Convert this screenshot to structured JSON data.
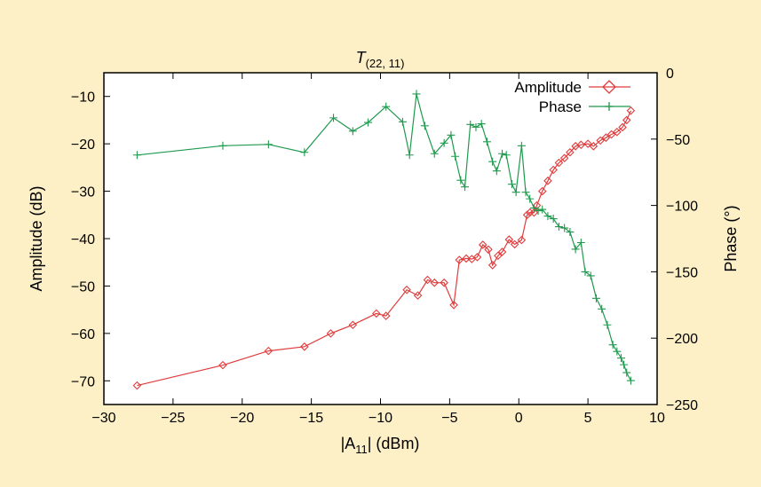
{
  "chart_data": {
    "type": "line",
    "title": "T",
    "title_subscript": "(22, 11)",
    "xlabel": "|A",
    "xlabel_subscript": "11",
    "xlabel_suffix": "| (dBm)",
    "ylabel": "Amplitude (dB)",
    "y2label": "Phase (°)",
    "xlim": [
      -30,
      10
    ],
    "ylim": [
      -75,
      -5
    ],
    "y2lim": [
      -250,
      0
    ],
    "xticks": [
      -30,
      -25,
      -20,
      -15,
      -10,
      -5,
      0,
      5,
      10
    ],
    "yticks": [
      -70,
      -60,
      -50,
      -40,
      -30,
      -20,
      -10
    ],
    "y2ticks": [
      -250,
      -200,
      -150,
      -100,
      -50,
      0
    ],
    "xtick_labels": [
      "−30",
      "−25",
      "−20",
      "−15",
      "−10",
      "−5",
      "0",
      "5",
      "10"
    ],
    "ytick_labels": [
      "−70",
      "−60",
      "−50",
      "−40",
      "−30",
      "−20",
      "−10"
    ],
    "y2tick_labels": [
      "−250",
      "−200",
      "−150",
      "−100",
      "−50",
      "0"
    ],
    "grid": false,
    "legend_position": "top-right",
    "series": [
      {
        "name": "Amplitude",
        "axis": "left",
        "color": "#e03c3c",
        "marker": "diamond",
        "points": [
          [
            -27.6,
            -71
          ],
          [
            -21.4,
            -66.7
          ],
          [
            -18.1,
            -63.7
          ],
          [
            -15.5,
            -62.8
          ],
          [
            -13.6,
            -60
          ],
          [
            -12,
            -58.2
          ],
          [
            -10.3,
            -55.8
          ],
          [
            -9.6,
            -56.3
          ],
          [
            -8.1,
            -50.8
          ],
          [
            -7.3,
            -52
          ],
          [
            -6.6,
            -48.7
          ],
          [
            -6.1,
            -49.3
          ],
          [
            -5.4,
            -49.3
          ],
          [
            -4.7,
            -54
          ],
          [
            -4.3,
            -44.5
          ],
          [
            -3.8,
            -44.2
          ],
          [
            -3.4,
            -44.3
          ],
          [
            -3.0,
            -43.9
          ],
          [
            -2.6,
            -41.3
          ],
          [
            -2.2,
            -42.3
          ],
          [
            -1.9,
            -45.6
          ],
          [
            -1.5,
            -43.6
          ],
          [
            -1.2,
            -42.8
          ],
          [
            -0.7,
            -40.2
          ],
          [
            -0.3,
            -41.2
          ],
          [
            0.2,
            -40.3
          ],
          [
            0.6,
            -35
          ],
          [
            0.8,
            -34.5
          ],
          [
            1.1,
            -34.5
          ],
          [
            1.3,
            -33
          ],
          [
            1.7,
            -30
          ],
          [
            2.1,
            -27.8
          ],
          [
            2.5,
            -25.5
          ],
          [
            2.9,
            -24
          ],
          [
            3.3,
            -23
          ],
          [
            3.7,
            -21.8
          ],
          [
            4.1,
            -20.5
          ],
          [
            4.5,
            -20.2
          ],
          [
            5.0,
            -20
          ],
          [
            5.4,
            -20.5
          ],
          [
            5.9,
            -19.3
          ],
          [
            6.3,
            -18.7
          ],
          [
            6.7,
            -18
          ],
          [
            7.1,
            -17.5
          ],
          [
            7.5,
            -16.5
          ],
          [
            7.8,
            -15
          ],
          [
            8.1,
            -13
          ]
        ]
      },
      {
        "name": "Phase",
        "axis": "right",
        "color": "#1f9a4e",
        "marker": "plus",
        "points": [
          [
            -27.6,
            -62
          ],
          [
            -21.4,
            -55
          ],
          [
            -18.1,
            -54
          ],
          [
            -15.5,
            -60
          ],
          [
            -13.4,
            -34
          ],
          [
            -12,
            -44
          ],
          [
            -10.9,
            -37.5
          ],
          [
            -9.6,
            -25.5
          ],
          [
            -8.4,
            -37
          ],
          [
            -7.9,
            -62
          ],
          [
            -7.4,
            -16
          ],
          [
            -6.8,
            -40
          ],
          [
            -6.1,
            -61
          ],
          [
            -5.4,
            -53
          ],
          [
            -4.9,
            -47
          ],
          [
            -4.6,
            -63
          ],
          [
            -4.2,
            -81
          ],
          [
            -3.9,
            -86
          ],
          [
            -3.5,
            -39
          ],
          [
            -3.1,
            -41
          ],
          [
            -2.7,
            -38.5
          ],
          [
            -2.3,
            -52
          ],
          [
            -1.9,
            -67
          ],
          [
            -1.6,
            -74
          ],
          [
            -1.2,
            -61
          ],
          [
            -0.9,
            -62
          ],
          [
            -0.5,
            -84
          ],
          [
            -0.2,
            -90
          ],
          [
            0.2,
            -55
          ],
          [
            0.5,
            -90
          ],
          [
            0.8,
            -95
          ],
          [
            1.1,
            -102
          ],
          [
            1.4,
            -104
          ],
          [
            1.7,
            -103
          ],
          [
            2.1,
            -108
          ],
          [
            2.5,
            -110
          ],
          [
            2.9,
            -116
          ],
          [
            3.3,
            -117
          ],
          [
            3.7,
            -120
          ],
          [
            4.1,
            -133
          ],
          [
            4.5,
            -128
          ],
          [
            4.8,
            -150
          ],
          [
            5.2,
            -153
          ],
          [
            5.6,
            -170
          ],
          [
            6.0,
            -178
          ],
          [
            6.4,
            -190
          ],
          [
            6.8,
            -205
          ],
          [
            7.1,
            -210
          ],
          [
            7.4,
            -215
          ],
          [
            7.6,
            -220
          ],
          [
            7.8,
            -226
          ],
          [
            8.1,
            -232
          ]
        ]
      }
    ]
  }
}
